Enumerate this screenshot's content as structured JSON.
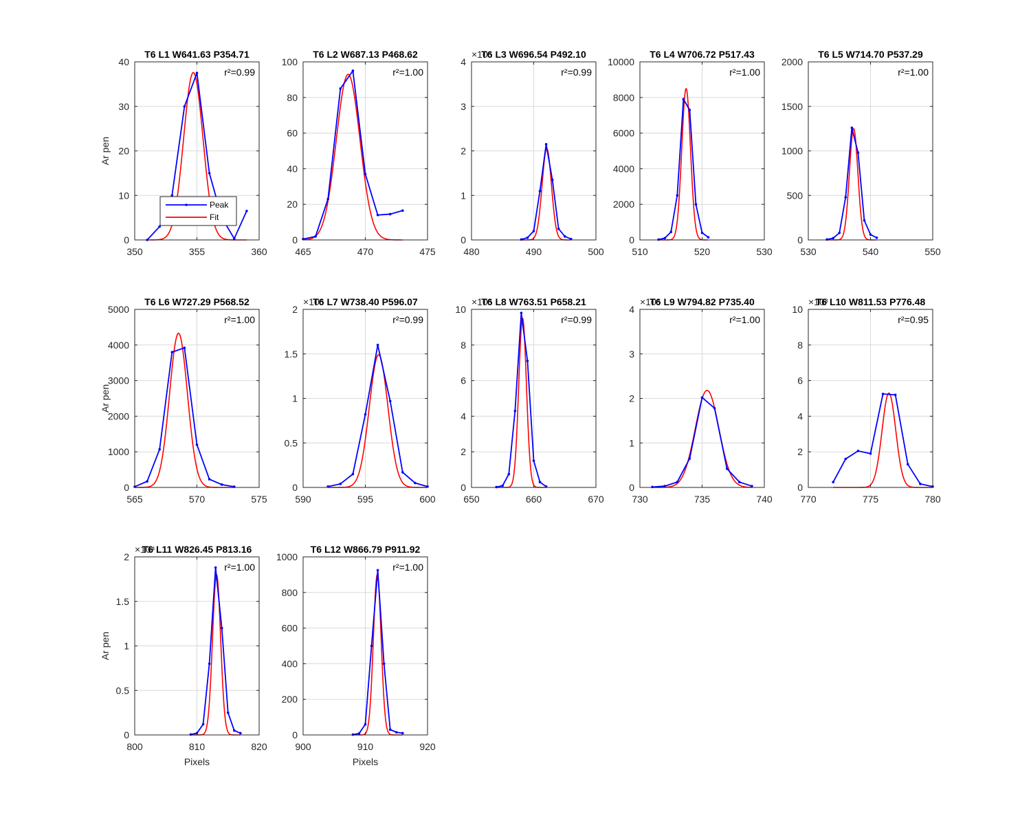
{
  "chart_data": [
    {
      "type": "line",
      "title": "T6 L1 W641.63 P354.71",
      "r2": "r²=0.99",
      "ylabel": "Ar pen",
      "xlabel": "",
      "xlim": [
        350,
        360
      ],
      "ylim": [
        0,
        40
      ],
      "xticks": [
        350,
        355,
        360
      ],
      "yticks": [
        0,
        10,
        20,
        30,
        40
      ],
      "ytick_labels": [
        "0",
        "10",
        "20",
        "30",
        "40"
      ],
      "exponent": "",
      "grid_x": [
        355
      ],
      "legend": {
        "position": "bottom-left",
        "entries": [
          "Peak",
          "Fit"
        ]
      },
      "series": [
        {
          "name": "Peak",
          "color": "#0000ff",
          "x": [
            351,
            352,
            353,
            354,
            355,
            356,
            357,
            358,
            359
          ],
          "y": [
            0,
            3,
            10,
            30,
            37.5,
            15,
            5,
            0.3,
            6.5
          ]
        },
        {
          "name": "Fit",
          "color": "#ff0000",
          "center": 354.71,
          "amplitude": 37.6,
          "sigma": 0.78,
          "x_range": [
            351,
            359
          ]
        }
      ]
    },
    {
      "type": "line",
      "title": "T6 L2 W687.13 P468.62",
      "r2": "r²=1.00",
      "ylabel": "",
      "xlabel": "",
      "xlim": [
        465,
        475
      ],
      "ylim": [
        0,
        100
      ],
      "xticks": [
        465,
        470,
        475
      ],
      "yticks": [
        0,
        20,
        40,
        60,
        80,
        100
      ],
      "ytick_labels": [
        "0",
        "20",
        "40",
        "60",
        "80",
        "100"
      ],
      "exponent": "",
      "grid_x": [
        470
      ],
      "series": [
        {
          "name": "Peak",
          "color": "#0000ff",
          "x": [
            465,
            466,
            467,
            468,
            469,
            470,
            471,
            472,
            473
          ],
          "y": [
            0.5,
            2,
            23,
            85,
            95,
            37,
            14,
            14.5,
            16.5
          ]
        },
        {
          "name": "Fit",
          "color": "#ff0000",
          "center": 468.62,
          "amplitude": 93,
          "sigma": 0.95,
          "x_range": [
            465,
            473
          ]
        }
      ]
    },
    {
      "type": "line",
      "title": "T6 L3 W696.54 P492.10",
      "r2": "r²=0.99",
      "ylabel": "",
      "xlabel": "",
      "xlim": [
        480,
        500
      ],
      "ylim": [
        0,
        4
      ],
      "xticks": [
        480,
        490,
        500
      ],
      "yticks": [
        0,
        1,
        2,
        3,
        4
      ],
      "ytick_labels": [
        "0",
        "1",
        "2",
        "3",
        "4"
      ],
      "exponent": "×10⁴",
      "grid_x": [
        490
      ],
      "series": [
        {
          "name": "Peak",
          "color": "#0000ff",
          "x": [
            488,
            489,
            490,
            491,
            492,
            493,
            494,
            495,
            496
          ],
          "y": [
            0.01,
            0.05,
            0.2,
            1.1,
            2.15,
            1.35,
            0.25,
            0.08,
            0.02
          ]
        },
        {
          "name": "Fit",
          "color": "#ff0000",
          "center": 492.1,
          "amplitude": 2.05,
          "sigma": 0.75,
          "x_range": [
            488,
            496
          ]
        }
      ]
    },
    {
      "type": "line",
      "title": "T6 L4 W706.72 P517.43",
      "r2": "r²=1.00",
      "ylabel": "",
      "xlabel": "",
      "xlim": [
        510,
        530
      ],
      "ylim": [
        0,
        10000
      ],
      "xticks": [
        510,
        520,
        530
      ],
      "yticks": [
        0,
        2000,
        4000,
        6000,
        8000,
        10000
      ],
      "ytick_labels": [
        "0",
        "2000",
        "4000",
        "6000",
        "8000",
        "10000"
      ],
      "exponent": "",
      "grid_x": [
        520
      ],
      "series": [
        {
          "name": "Peak",
          "color": "#0000ff",
          "x": [
            513,
            514,
            515,
            516,
            517,
            518,
            519,
            520,
            521
          ],
          "y": [
            20,
            100,
            450,
            2500,
            7900,
            7300,
            2000,
            400,
            150
          ]
        },
        {
          "name": "Fit",
          "color": "#ff0000",
          "center": 517.43,
          "amplitude": 8500,
          "sigma": 0.7,
          "x_range": [
            513,
            521
          ]
        }
      ]
    },
    {
      "type": "line",
      "title": "T6 L5 W714.70 P537.29",
      "r2": "r²=1.00",
      "ylabel": "",
      "xlabel": "",
      "xlim": [
        530,
        550
      ],
      "ylim": [
        0,
        2000
      ],
      "xticks": [
        530,
        540,
        550
      ],
      "yticks": [
        0,
        500,
        1000,
        1500,
        2000
      ],
      "ytick_labels": [
        "0",
        "500",
        "1000",
        "1500",
        "2000"
      ],
      "exponent": "",
      "grid_x": [
        540
      ],
      "series": [
        {
          "name": "Peak",
          "color": "#0000ff",
          "x": [
            533,
            534,
            535,
            536,
            537,
            538,
            539,
            540,
            541
          ],
          "y": [
            5,
            20,
            80,
            480,
            1260,
            980,
            220,
            60,
            25
          ]
        },
        {
          "name": "Fit",
          "color": "#ff0000",
          "center": 537.29,
          "amplitude": 1250,
          "sigma": 0.68,
          "x_range": [
            533,
            541
          ]
        }
      ]
    },
    {
      "type": "line",
      "title": "T6 L6 W727.29 P568.52",
      "r2": "r²=1.00",
      "ylabel": "Ar pen",
      "xlabel": "",
      "xlim": [
        565,
        575
      ],
      "ylim": [
        0,
        5000
      ],
      "xticks": [
        565,
        570,
        575
      ],
      "yticks": [
        0,
        1000,
        2000,
        3000,
        4000,
        5000
      ],
      "ytick_labels": [
        "0",
        "1000",
        "2000",
        "3000",
        "4000",
        "5000"
      ],
      "exponent": "",
      "grid_x": [
        570
      ],
      "series": [
        {
          "name": "Peak",
          "color": "#0000ff",
          "x": [
            565,
            566,
            567,
            568,
            569,
            570,
            571,
            572,
            573
          ],
          "y": [
            20,
            170,
            1070,
            3800,
            3920,
            1200,
            230,
            80,
            20
          ]
        },
        {
          "name": "Fit",
          "color": "#ff0000",
          "center": 568.52,
          "amplitude": 4330,
          "sigma": 0.72,
          "x_range": [
            565,
            573
          ]
        }
      ]
    },
    {
      "type": "line",
      "title": "T6 L7 W738.40 P596.07",
      "r2": "r²=0.99",
      "ylabel": "",
      "xlabel": "",
      "xlim": [
        590,
        600
      ],
      "ylim": [
        0,
        2
      ],
      "xticks": [
        590,
        595,
        600
      ],
      "yticks": [
        0,
        0.5,
        1,
        1.5,
        2
      ],
      "ytick_labels": [
        "0",
        "0.5",
        "1",
        "1.5",
        "2"
      ],
      "exponent": "×10⁴",
      "grid_x": [
        595
      ],
      "series": [
        {
          "name": "Peak",
          "color": "#0000ff",
          "x": [
            592,
            593,
            594,
            595,
            596,
            597,
            598,
            599,
            600
          ],
          "y": [
            0.01,
            0.04,
            0.15,
            0.82,
            1.6,
            0.97,
            0.17,
            0.05,
            0.01
          ]
        },
        {
          "name": "Fit",
          "color": "#ff0000",
          "center": 596.07,
          "amplitude": 1.49,
          "sigma": 0.75,
          "x_range": [
            592,
            600
          ]
        }
      ]
    },
    {
      "type": "line",
      "title": "T6 L8 W763.51 P658.21",
      "r2": "r²=0.99",
      "ylabel": "",
      "xlabel": "",
      "xlim": [
        650,
        670
      ],
      "ylim": [
        0,
        10
      ],
      "xticks": [
        650,
        660,
        670
      ],
      "yticks": [
        0,
        2,
        4,
        6,
        8,
        10
      ],
      "ytick_labels": [
        "0",
        "2",
        "4",
        "6",
        "8",
        "10"
      ],
      "exponent": "×10⁴",
      "grid_x": [
        660
      ],
      "series": [
        {
          "name": "Peak",
          "color": "#0000ff",
          "x": [
            654,
            655,
            656,
            657,
            658,
            659,
            660,
            661,
            662
          ],
          "y": [
            0.02,
            0.1,
            0.75,
            4.3,
            9.8,
            7.1,
            1.5,
            0.3,
            0.05
          ]
        },
        {
          "name": "Fit",
          "color": "#ff0000",
          "center": 658.21,
          "amplitude": 9.5,
          "sigma": 0.62,
          "x_range": [
            654,
            662
          ]
        }
      ]
    },
    {
      "type": "line",
      "title": "T6 L9 W794.82 P735.40",
      "r2": "r²=1.00",
      "ylabel": "",
      "xlabel": "",
      "xlim": [
        730,
        740
      ],
      "ylim": [
        0,
        4
      ],
      "xticks": [
        730,
        735,
        740
      ],
      "yticks": [
        0,
        1,
        2,
        3,
        4
      ],
      "ytick_labels": [
        "0",
        "1",
        "2",
        "3",
        "4"
      ],
      "exponent": "×10⁴",
      "grid_x": [
        735
      ],
      "series": [
        {
          "name": "Peak",
          "color": "#0000ff",
          "x": [
            731,
            732,
            733,
            734,
            735,
            736,
            737,
            738,
            739
          ],
          "y": [
            0.01,
            0.03,
            0.12,
            0.65,
            2.02,
            1.78,
            0.42,
            0.12,
            0.03
          ]
        },
        {
          "name": "Fit",
          "color": "#ff0000",
          "center": 735.4,
          "amplitude": 2.18,
          "sigma": 0.95,
          "x_range": [
            731,
            739
          ]
        }
      ]
    },
    {
      "type": "line",
      "title": "T6 L10 W811.53 P776.48",
      "r2": "r²=0.95",
      "ylabel": "",
      "xlabel": "",
      "xlim": [
        770,
        780
      ],
      "ylim": [
        0,
        10
      ],
      "xticks": [
        770,
        775,
        780
      ],
      "yticks": [
        0,
        2,
        4,
        6,
        8,
        10
      ],
      "ytick_labels": [
        "0",
        "2",
        "4",
        "6",
        "8",
        "10"
      ],
      "exponent": "×10³",
      "grid_x": [
        775
      ],
      "series": [
        {
          "name": "Peak",
          "color": "#0000ff",
          "x": [
            772,
            773,
            774,
            775,
            776,
            777,
            778,
            779,
            780
          ],
          "y": [
            0.3,
            1.6,
            2.05,
            1.9,
            5.25,
            5.2,
            1.3,
            0.2,
            0.05
          ]
        },
        {
          "name": "Fit",
          "color": "#ff0000",
          "center": 776.48,
          "amplitude": 5.3,
          "sigma": 0.55,
          "x_range": [
            772,
            780
          ]
        }
      ]
    },
    {
      "type": "line",
      "title": "T6 L11 W826.45 P813.16",
      "r2": "r²=1.00",
      "ylabel": "Ar pen",
      "xlabel": "Pixels",
      "xlim": [
        800,
        820
      ],
      "ylim": [
        0,
        2
      ],
      "xticks": [
        800,
        810,
        820
      ],
      "yticks": [
        0,
        0.5,
        1,
        1.5,
        2
      ],
      "ytick_labels": [
        "0",
        "0.5",
        "1",
        "1.5",
        "2"
      ],
      "exponent": "×10⁴",
      "grid_x": [
        810
      ],
      "series": [
        {
          "name": "Peak",
          "color": "#0000ff",
          "x": [
            809,
            810,
            811,
            812,
            813,
            814,
            815,
            816,
            817
          ],
          "y": [
            0.005,
            0.02,
            0.12,
            0.8,
            1.88,
            1.2,
            0.25,
            0.05,
            0.02
          ]
        },
        {
          "name": "Fit",
          "color": "#ff0000",
          "center": 813.16,
          "amplitude": 1.8,
          "sigma": 0.65,
          "x_range": [
            809,
            817
          ]
        }
      ]
    },
    {
      "type": "line",
      "title": "T6 L12 W866.79 P911.92",
      "r2": "r²=1.00",
      "ylabel": "",
      "xlabel": "Pixels",
      "xlim": [
        900,
        920
      ],
      "ylim": [
        0,
        1000
      ],
      "xticks": [
        900,
        910,
        920
      ],
      "yticks": [
        0,
        200,
        400,
        600,
        800,
        1000
      ],
      "ytick_labels": [
        "0",
        "200",
        "400",
        "600",
        "800",
        "1000"
      ],
      "exponent": "",
      "grid_x": [
        910
      ],
      "series": [
        {
          "name": "Peak",
          "color": "#0000ff",
          "x": [
            908,
            909,
            910,
            911,
            912,
            913,
            914,
            915,
            916
          ],
          "y": [
            2,
            8,
            60,
            500,
            925,
            400,
            30,
            15,
            10
          ]
        },
        {
          "name": "Fit",
          "color": "#ff0000",
          "center": 911.92,
          "amplitude": 900,
          "sigma": 0.62,
          "x_range": [
            908,
            916
          ]
        }
      ]
    }
  ]
}
